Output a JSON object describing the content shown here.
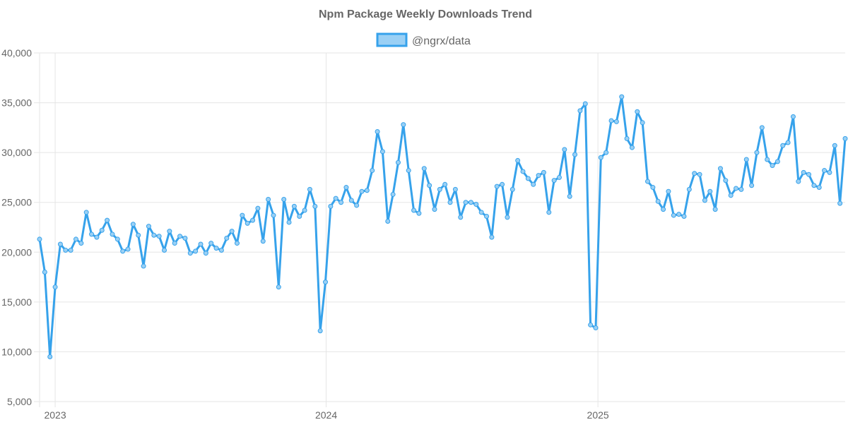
{
  "chart_data": {
    "type": "line",
    "title": "Npm Package Weekly Downloads Trend",
    "xlabel": "",
    "ylabel": "",
    "ylim": [
      5000,
      40000
    ],
    "y_ticks": [
      "5,000",
      "10,000",
      "15,000",
      "20,000",
      "25,000",
      "30,000",
      "35,000",
      "40,000"
    ],
    "x_ticks": [
      {
        "label": "2023",
        "date": "2023-01-01"
      },
      {
        "label": "2024",
        "date": "2024-01-01"
      },
      {
        "label": "2025",
        "date": "2025-01-01"
      }
    ],
    "grid": true,
    "legend_position": "top",
    "colors": {
      "line": "#36a2eb",
      "fill": "#9ad0f5",
      "grid": "#e5e5e5",
      "text": "#666666"
    },
    "series": [
      {
        "name": "@ngrx/data",
        "x": [
          "2022-12-11",
          "2022-12-18",
          "2022-12-25",
          "2023-01-01",
          "2023-01-08",
          "2023-01-15",
          "2023-01-22",
          "2023-01-29",
          "2023-02-05",
          "2023-02-12",
          "2023-02-19",
          "2023-02-26",
          "2023-03-05",
          "2023-03-12",
          "2023-03-19",
          "2023-03-26",
          "2023-04-02",
          "2023-04-09",
          "2023-04-16",
          "2023-04-23",
          "2023-04-30",
          "2023-05-07",
          "2023-05-14",
          "2023-05-21",
          "2023-05-28",
          "2023-06-04",
          "2023-06-11",
          "2023-06-18",
          "2023-06-25",
          "2023-07-02",
          "2023-07-09",
          "2023-07-16",
          "2023-07-23",
          "2023-07-30",
          "2023-08-06",
          "2023-08-13",
          "2023-08-20",
          "2023-08-27",
          "2023-09-03",
          "2023-09-10",
          "2023-09-17",
          "2023-09-24",
          "2023-10-01",
          "2023-10-08",
          "2023-10-15",
          "2023-10-22",
          "2023-10-29",
          "2023-11-05",
          "2023-11-12",
          "2023-11-19",
          "2023-11-26",
          "2023-12-03",
          "2023-12-10",
          "2023-12-17",
          "2023-12-24",
          "2023-12-31",
          "2024-01-07",
          "2024-01-14",
          "2024-01-21",
          "2024-01-28",
          "2024-02-04",
          "2024-02-11",
          "2024-02-18",
          "2024-02-25",
          "2024-03-03",
          "2024-03-10",
          "2024-03-17",
          "2024-03-24",
          "2024-03-31",
          "2024-04-07",
          "2024-04-14",
          "2024-04-21",
          "2024-04-28",
          "2024-05-05",
          "2024-05-12",
          "2024-05-19",
          "2024-05-26",
          "2024-06-02",
          "2024-06-09",
          "2024-06-16",
          "2024-06-23",
          "2024-06-30",
          "2024-07-07",
          "2024-07-14",
          "2024-07-21",
          "2024-07-28",
          "2024-08-04",
          "2024-08-11",
          "2024-08-18",
          "2024-08-25",
          "2024-09-01",
          "2024-09-08",
          "2024-09-15",
          "2024-09-22",
          "2024-09-29",
          "2024-10-06",
          "2024-10-13",
          "2024-10-20",
          "2024-10-27",
          "2024-11-03",
          "2024-11-10",
          "2024-11-17",
          "2024-11-24",
          "2024-12-01",
          "2024-12-08",
          "2024-12-15",
          "2024-12-22",
          "2024-12-29",
          "2025-01-05",
          "2025-01-12",
          "2025-01-19",
          "2025-01-26",
          "2025-02-02",
          "2025-02-09",
          "2025-02-16",
          "2025-02-23",
          "2025-03-02",
          "2025-03-09",
          "2025-03-16",
          "2025-03-23",
          "2025-03-30",
          "2025-04-06",
          "2025-04-13",
          "2025-04-20",
          "2025-04-27",
          "2025-05-04",
          "2025-05-11",
          "2025-05-18",
          "2025-05-25",
          "2025-06-01",
          "2025-06-08",
          "2025-06-15",
          "2025-06-22",
          "2025-06-29",
          "2025-07-06",
          "2025-07-13",
          "2025-07-20",
          "2025-07-27",
          "2025-08-03",
          "2025-08-10",
          "2025-08-17",
          "2025-08-24",
          "2025-08-31",
          "2025-09-07",
          "2025-09-14",
          "2025-09-21",
          "2025-09-28",
          "2025-10-05",
          "2025-10-12",
          "2025-10-19",
          "2025-10-26",
          "2025-11-02",
          "2025-11-09",
          "2025-11-16",
          "2025-11-23",
          "2025-11-30"
        ],
        "values": [
          21300,
          18000,
          9500,
          16500,
          20800,
          20200,
          20200,
          21300,
          20900,
          24000,
          21800,
          21500,
          22200,
          23200,
          21800,
          21300,
          20100,
          20300,
          22800,
          21700,
          18600,
          22600,
          21700,
          21600,
          20200,
          22100,
          20900,
          21600,
          21400,
          19900,
          20100,
          20800,
          19900,
          20900,
          20400,
          20200,
          21400,
          22100,
          20900,
          23700,
          22900,
          23200,
          24400,
          21100,
          25300,
          23700,
          16500,
          25300,
          23000,
          24600,
          23600,
          24200,
          26300,
          24600,
          12100,
          17000,
          24600,
          25400,
          25000,
          26500,
          25200,
          24700,
          26100,
          26200,
          28200,
          32100,
          30100,
          23100,
          25800,
          29000,
          32800,
          28200,
          24200,
          23900,
          28400,
          26700,
          24300,
          26300,
          26800,
          25000,
          26300,
          23500,
          25000,
          25000,
          24800,
          24000,
          23600,
          21500,
          26600,
          26800,
          23500,
          26300,
          29200,
          28100,
          27400,
          26800,
          27700,
          28000,
          24000,
          27200,
          27500,
          30300,
          25600,
          29800,
          34200,
          34900,
          12700,
          12400,
          29500,
          30000,
          33200,
          33100,
          35600,
          31400,
          30500,
          34100,
          33000,
          27100,
          26500,
          25100,
          24300,
          26100,
          23700,
          23800,
          23600,
          26300,
          27900,
          27800,
          25200,
          26100,
          24300,
          28400,
          27200,
          25700,
          26400,
          26300,
          29300,
          26700,
          30000,
          32500,
          29300,
          28700,
          29100,
          30700,
          31000,
          33600,
          27100,
          28000,
          27800,
          26700,
          26500,
          28200,
          28000,
          30700,
          24900,
          31400
        ]
      }
    ]
  }
}
